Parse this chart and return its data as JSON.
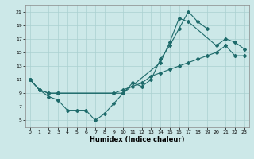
{
  "xlabel": "Humidex (Indice chaleur)",
  "xlim": [
    -0.5,
    23.5
  ],
  "ylim": [
    4,
    22
  ],
  "xticks": [
    0,
    1,
    2,
    3,
    4,
    5,
    6,
    7,
    8,
    9,
    10,
    11,
    12,
    13,
    14,
    15,
    16,
    17,
    18,
    19,
    20,
    21,
    22,
    23
  ],
  "yticks": [
    5,
    7,
    9,
    11,
    13,
    15,
    17,
    19,
    21
  ],
  "background_color": "#cce8e8",
  "grid_color": "#aad0d0",
  "line_color": "#1e6b6b",
  "line1_x": [
    0,
    1,
    2,
    3,
    4,
    5,
    6,
    7,
    8,
    9,
    10,
    11,
    12,
    13,
    14,
    15,
    16,
    17,
    18,
    19
  ],
  "line1_y": [
    11,
    9.5,
    8.5,
    8.0,
    6.5,
    6.5,
    6.5,
    5.0,
    6.0,
    7.5,
    9.0,
    10.5,
    10.0,
    11.0,
    14.0,
    16.0,
    18.5,
    21.0,
    19.5,
    18.5
  ],
  "line2_x": [
    0,
    1,
    2,
    3,
    9,
    10,
    14,
    15,
    16,
    17,
    20,
    21,
    22,
    23
  ],
  "line2_y": [
    11,
    9.5,
    9.0,
    9.0,
    9.0,
    9.0,
    13.5,
    16.5,
    20.0,
    19.5,
    16.0,
    17.0,
    16.5,
    15.5
  ],
  "line3_x": [
    0,
    1,
    2,
    3,
    9,
    10,
    11,
    12,
    13,
    14,
    15,
    16,
    17,
    18,
    19,
    20,
    21,
    22,
    23
  ],
  "line3_y": [
    11,
    9.5,
    9.0,
    9.0,
    9.0,
    9.5,
    10.0,
    10.5,
    11.5,
    12.0,
    12.5,
    13.0,
    13.5,
    14.0,
    14.5,
    15.0,
    16.0,
    14.5,
    14.5
  ]
}
